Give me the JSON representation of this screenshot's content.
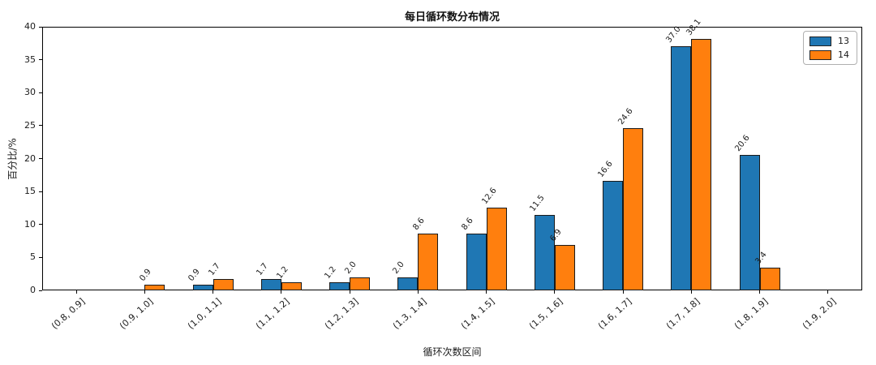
{
  "chart_data": {
    "type": "bar",
    "title": "每日循环数分布情况",
    "xlabel": "循环次数区间",
    "ylabel": "百分比/%",
    "categories": [
      "(0.8, 0.9]",
      "(0.9, 1.0]",
      "(1.0, 1.1]",
      "(1.1, 1.2]",
      "(1.2, 1.3]",
      "(1.3, 1.4]",
      "(1.4, 1.5]",
      "(1.5, 1.6]",
      "(1.6, 1.7]",
      "(1.7, 1.8]",
      "(1.8, 1.9]",
      "(1.9, 2.0]"
    ],
    "series": [
      {
        "name": "13",
        "color": "#1f77b4",
        "values": [
          0,
          0,
          0.9,
          1.7,
          1.2,
          2.0,
          8.6,
          11.5,
          16.6,
          37.0,
          20.6,
          0
        ]
      },
      {
        "name": "14",
        "color": "#ff7f0e",
        "values": [
          0,
          0.9,
          1.7,
          1.2,
          2.0,
          8.6,
          12.6,
          6.9,
          24.6,
          38.1,
          3.4,
          0
        ]
      }
    ],
    "value_labels": {
      "13": [
        "",
        "",
        "0.9",
        "1.7",
        "1.2",
        "2.0",
        "8.6",
        "11.5",
        "16.6",
        "37.0",
        "20.6",
        ""
      ],
      "14": [
        "",
        "0.9",
        "1.7",
        "1.2",
        "2.0",
        "8.6",
        "12.6",
        "6.9",
        "24.6",
        "38.1",
        "3.4",
        ""
      ]
    },
    "ylim": [
      0,
      40
    ],
    "yticks": [
      0,
      5,
      10,
      15,
      20,
      25,
      30,
      35,
      40
    ],
    "grid": false,
    "legend_position": "upper right",
    "bar_edge_color": "#1a1a1a",
    "background_color": "#ffffff"
  }
}
